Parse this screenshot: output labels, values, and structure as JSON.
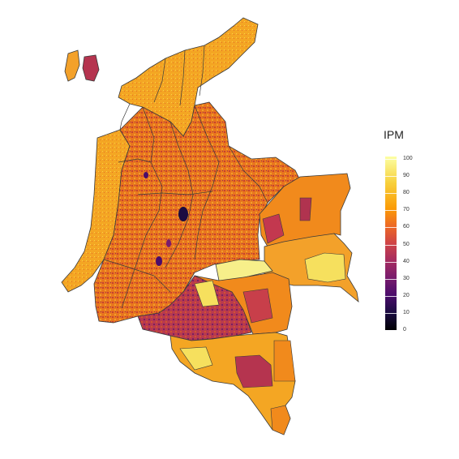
{
  "legend": {
    "title": "IPM",
    "ticks": [
      "100",
      "90",
      "80",
      "70",
      "60",
      "50",
      "40",
      "30",
      "20",
      "10",
      "0"
    ],
    "range": [
      0,
      100
    ],
    "colormap": "inferno",
    "colors": {
      "high": "#fcffa4",
      "mid_high": "#fb9b06",
      "mid": "#cf4446",
      "mid_low": "#781c6d",
      "low": "#000004"
    }
  },
  "map": {
    "region": "Colombia",
    "border_color": "#3a3a3a"
  }
}
